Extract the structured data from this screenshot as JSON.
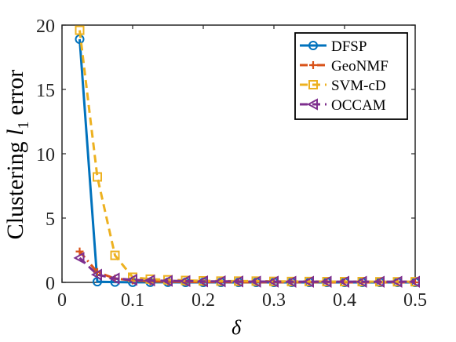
{
  "chart_data": {
    "type": "line",
    "title": "",
    "xlabel": "δ",
    "ylabel_main": "Clustering ",
    "ylabel_symbol": "l",
    "ylabel_sub": "1",
    "ylabel_tail": " error",
    "xlim": [
      0,
      0.5
    ],
    "ylim": [
      0,
      20
    ],
    "xticks": [
      0,
      0.1,
      0.2,
      0.3,
      0.4,
      0.5
    ],
    "xtick_labels": [
      "0",
      "0.1",
      "0.2",
      "0.3",
      "0.4",
      "0.5"
    ],
    "yticks": [
      0,
      5,
      10,
      15,
      20
    ],
    "ytick_labels": [
      "0",
      "5",
      "10",
      "15",
      "20"
    ],
    "grid": false,
    "legend_position": "top-right",
    "x": [
      0.025,
      0.05,
      0.075,
      0.1,
      0.125,
      0.15,
      0.175,
      0.2,
      0.225,
      0.25,
      0.275,
      0.3,
      0.325,
      0.35,
      0.375,
      0.4,
      0.425,
      0.45,
      0.475,
      0.5
    ],
    "series": [
      {
        "name": "DFSP",
        "color": "#0072BD",
        "dash": "solid",
        "marker": "circle",
        "values": [
          18.9,
          0.05,
          0.02,
          0.01,
          0.01,
          0.01,
          0.0,
          0.0,
          0.0,
          0.0,
          0.0,
          0.0,
          0.0,
          0.0,
          0.0,
          0.0,
          0.0,
          0.0,
          0.0,
          0.0
        ]
      },
      {
        "name": "GeoNMF",
        "color": "#D95319",
        "dash": "dashdot",
        "marker": "plus",
        "values": [
          2.4,
          0.8,
          0.3,
          0.15,
          0.08,
          0.05,
          0.03,
          0.02,
          0.02,
          0.01,
          0.01,
          0.01,
          0.01,
          0.01,
          0.0,
          0.0,
          0.0,
          0.0,
          0.0,
          0.0
        ]
      },
      {
        "name": "SVM-cD",
        "color": "#EDB120",
        "dash": "dashed",
        "marker": "square",
        "values": [
          19.6,
          8.2,
          2.1,
          0.4,
          0.25,
          0.2,
          0.15,
          0.12,
          0.1,
          0.1,
          0.1,
          0.08,
          0.07,
          0.07,
          0.06,
          0.06,
          0.06,
          0.05,
          0.05,
          0.05
        ]
      },
      {
        "name": "OCCAM",
        "color": "#7E2F8E",
        "dash": "dashed",
        "marker": "triangle-left",
        "values": [
          1.9,
          0.6,
          0.3,
          0.2,
          0.15,
          0.12,
          0.1,
          0.08,
          0.08,
          0.07,
          0.06,
          0.06,
          0.05,
          0.05,
          0.05,
          0.05,
          0.05,
          0.05,
          0.05,
          0.05
        ]
      }
    ]
  }
}
